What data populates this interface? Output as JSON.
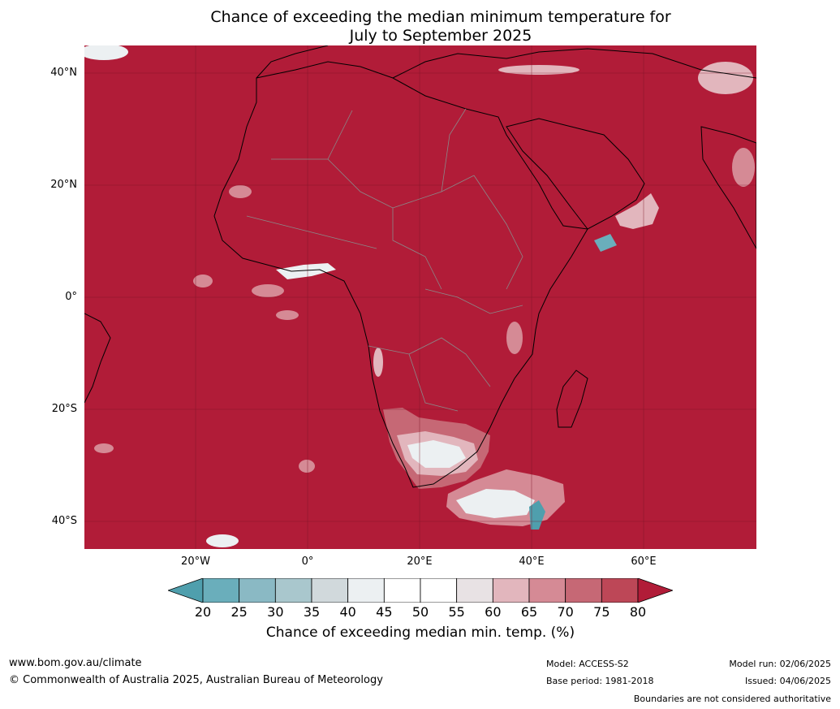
{
  "title": {
    "line1": "Chance of exceeding the median minimum temperature for",
    "line2": "July to September 2025"
  },
  "map": {
    "background_color": "#b11c38",
    "lat_labels": [
      "40°N",
      "20°N",
      "0°",
      "20°S",
      "40°S"
    ],
    "lon_labels": [
      "20°W",
      "0°",
      "20°E",
      "40°E",
      "60°E"
    ]
  },
  "colorbar": {
    "ticks": [
      "20",
      "25",
      "30",
      "35",
      "40",
      "45",
      "50",
      "55",
      "60",
      "65",
      "70",
      "75",
      "80"
    ],
    "colors": [
      "#4f9fad",
      "#6aaebb",
      "#8ab9c4",
      "#a9c7cd",
      "#d1d9dc",
      "#ecf0f2",
      "#ffffff",
      "#ffffff",
      "#e8e2e4",
      "#e2b6bd",
      "#d58a95",
      "#c66875",
      "#bd4757",
      "#b11c38"
    ],
    "title": "Chance of exceeding median min. temp. (%)"
  },
  "footer": {
    "website": "www.bom.gov.au/climate",
    "copyright": "© Commonwealth of Australia 2025, Australian Bureau of Meteorology",
    "model": "Model: ACCESS-S2",
    "base_period": "Base period: 1981-2018",
    "model_run": "Model run: 02/06/2025",
    "issued": "Issued: 04/06/2025",
    "disclaimer": "Boundaries are not considered authoritative"
  }
}
